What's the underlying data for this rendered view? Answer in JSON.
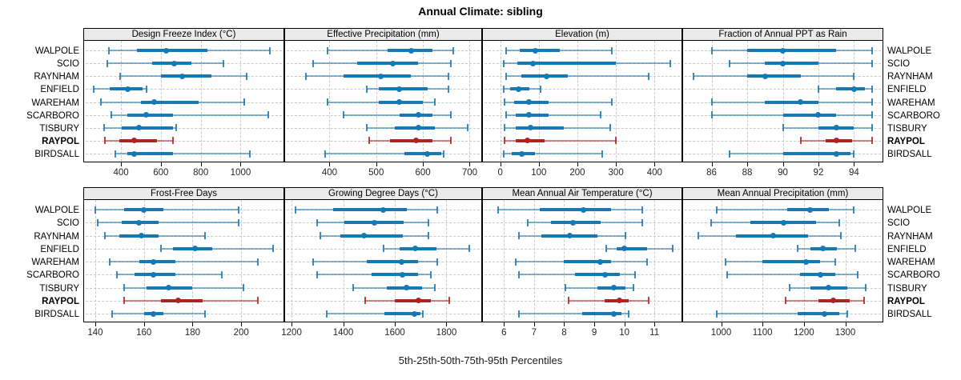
{
  "title": "Annual Climate: sibling",
  "caption": "5th-25th-50th-75th-95th Percentiles",
  "sites": [
    "WALPOLE",
    "SCIO",
    "RAYNHAM",
    "ENFIELD",
    "WAREHAM",
    "SCARBORO",
    "TISBURY",
    "RAYPOL",
    "BIRDSALL"
  ],
  "highlight_site": "RAYPOL",
  "colors": {
    "series": "#1878b4",
    "highlight": "#b22222",
    "grid": "#c9c9c9",
    "strip_bg": "#ebebeb",
    "panel_border": "#000000",
    "tick_text": "#262626"
  },
  "chart_data": {
    "type": "interval",
    "title": "Annual Climate: sibling",
    "caption": "5th-25th-50th-75th-95th Percentiles",
    "percentiles": [
      5,
      25,
      50,
      75,
      95
    ],
    "categories": [
      "WALPOLE",
      "SCIO",
      "RAYNHAM",
      "ENFIELD",
      "WAREHAM",
      "SCARBORO",
      "TISBURY",
      "RAYPOL",
      "BIRDSALL"
    ],
    "highlight": "RAYPOL",
    "grid": true,
    "legend_position": "none",
    "panels": [
      {
        "title": "Design Freeze Index (°C)",
        "row": 0,
        "col": 0,
        "xlim": [
          215,
          1215
        ],
        "ticks": [
          400,
          600,
          800,
          1000
        ],
        "series": [
          [
            340,
            480,
            625,
            835,
            1145
          ],
          [
            330,
            555,
            665,
            755,
            915
          ],
          [
            395,
            600,
            705,
            855,
            1030
          ],
          [
            265,
            345,
            435,
            510,
            530
          ],
          [
            300,
            500,
            565,
            790,
            1020
          ],
          [
            350,
            430,
            525,
            660,
            1140
          ],
          [
            315,
            405,
            490,
            660,
            675
          ],
          [
            320,
            390,
            465,
            580,
            660
          ],
          [
            370,
            430,
            465,
            660,
            1045
          ]
        ]
      },
      {
        "title": "Effective Precipitation (mm)",
        "row": 0,
        "col": 1,
        "xlim": [
          305,
          725
        ],
        "ticks": [
          400,
          500,
          600,
          700
        ],
        "series": [
          [
            395,
            525,
            575,
            620,
            665
          ],
          [
            365,
            460,
            535,
            590,
            660
          ],
          [
            350,
            430,
            510,
            575,
            655
          ],
          [
            480,
            505,
            550,
            610,
            655
          ],
          [
            395,
            505,
            550,
            600,
            625
          ],
          [
            430,
            550,
            590,
            620,
            660
          ],
          [
            480,
            540,
            590,
            625,
            695
          ],
          [
            485,
            530,
            585,
            620,
            660
          ],
          [
            390,
            560,
            610,
            640,
            645
          ]
        ]
      },
      {
        "title": "Elevation (m)",
        "row": 0,
        "col": 2,
        "xlim": [
          -45,
          470
        ],
        "ticks": [
          0,
          100,
          200,
          300,
          400
        ],
        "series": [
          [
            15,
            50,
            90,
            155,
            290
          ],
          [
            10,
            45,
            85,
            300,
            440
          ],
          [
            15,
            55,
            120,
            175,
            385
          ],
          [
            8,
            25,
            48,
            75,
            105
          ],
          [
            12,
            35,
            75,
            125,
            290
          ],
          [
            15,
            40,
            75,
            125,
            260
          ],
          [
            12,
            40,
            78,
            165,
            285
          ],
          [
            12,
            40,
            70,
            115,
            300
          ],
          [
            10,
            30,
            55,
            90,
            265
          ]
        ]
      },
      {
        "title": "Fraction of Annual PPT as Rain",
        "row": 0,
        "col": 3,
        "xlim": [
          84.4,
          95.6
        ],
        "ticks": [
          86,
          88,
          90,
          92,
          94
        ],
        "series": [
          [
            86,
            88,
            90,
            93,
            95
          ],
          [
            87,
            89,
            90,
            92,
            95
          ],
          [
            85,
            88,
            89,
            91,
            94
          ],
          [
            92,
            93,
            94,
            94.6,
            95
          ],
          [
            86,
            89,
            91,
            92,
            95
          ],
          [
            86,
            90,
            92,
            93,
            95
          ],
          [
            90,
            92,
            93,
            94,
            95
          ],
          [
            91,
            92.4,
            93,
            93.9,
            95
          ],
          [
            87,
            90,
            93,
            93.8,
            94
          ]
        ]
      },
      {
        "title": "Frost-Free Days",
        "row": 1,
        "col": 0,
        "xlim": [
          135.4,
          217.4
        ],
        "ticks": [
          140,
          160,
          180,
          200
        ],
        "series": [
          [
            140,
            152,
            160,
            168,
            199
          ],
          [
            141,
            151,
            158,
            166,
            199
          ],
          [
            144,
            150,
            159,
            166,
            185
          ],
          [
            167,
            172,
            181,
            188,
            213
          ],
          [
            146,
            158,
            164,
            173,
            207
          ],
          [
            149,
            156,
            164,
            173,
            192
          ],
          [
            152,
            161,
            170,
            180,
            201
          ],
          [
            152,
            167,
            174,
            184,
            207
          ],
          [
            147,
            160,
            164,
            168,
            185
          ]
        ]
      },
      {
        "title": "Growing Degree Days (°C)",
        "row": 1,
        "col": 1,
        "xlim": [
          1175,
          1935
        ],
        "ticks": [
          1200,
          1400,
          1600,
          1800
        ],
        "series": [
          [
            1215,
            1360,
            1555,
            1645,
            1765
          ],
          [
            1300,
            1405,
            1520,
            1635,
            1730
          ],
          [
            1310,
            1390,
            1480,
            1630,
            1730
          ],
          [
            1555,
            1620,
            1680,
            1760,
            1890
          ],
          [
            1285,
            1490,
            1625,
            1690,
            1765
          ],
          [
            1300,
            1510,
            1630,
            1690,
            1740
          ],
          [
            1440,
            1570,
            1645,
            1705,
            1755
          ],
          [
            1485,
            1600,
            1690,
            1740,
            1810
          ],
          [
            1335,
            1560,
            1675,
            1700,
            1710
          ]
        ]
      },
      {
        "title": "Mean Annual Air Temperature (°C)",
        "row": 1,
        "col": 2,
        "xlim": [
          5.3,
          11.9
        ],
        "ticks": [
          6,
          7,
          8,
          9,
          10,
          11
        ],
        "series": [
          [
            5.8,
            7.2,
            8.65,
            9.55,
            10.6
          ],
          [
            6.8,
            7.55,
            8.3,
            9.2,
            10.6
          ],
          [
            6.5,
            7.25,
            8.2,
            9.1,
            10.05
          ],
          [
            9.4,
            9.75,
            10.0,
            10.75,
            11.6
          ],
          [
            6.4,
            8.0,
            9.2,
            9.55,
            10.75
          ],
          [
            6.5,
            8.35,
            9.35,
            9.85,
            10.35
          ],
          [
            8.05,
            9.1,
            9.65,
            10.05,
            10.3
          ],
          [
            8.15,
            9.35,
            9.85,
            10.15,
            10.8
          ],
          [
            6.5,
            8.6,
            9.65,
            9.9,
            10.15
          ]
        ]
      },
      {
        "title": "Mean Annual Precipitation (mm)",
        "row": 1,
        "col": 3,
        "xlim": [
          908,
          1390
        ],
        "ticks": [
          1000,
          1100,
          1200,
          1300
        ],
        "series": [
          [
            990,
            1160,
            1215,
            1260,
            1320
          ],
          [
            975,
            1070,
            1150,
            1230,
            1285
          ],
          [
            945,
            1035,
            1125,
            1210,
            1290
          ],
          [
            1185,
            1215,
            1245,
            1280,
            1325
          ],
          [
            1010,
            1100,
            1205,
            1240,
            1275
          ],
          [
            1015,
            1190,
            1240,
            1275,
            1330
          ],
          [
            1165,
            1215,
            1260,
            1305,
            1350
          ],
          [
            1155,
            1235,
            1270,
            1310,
            1345
          ],
          [
            990,
            1185,
            1250,
            1285,
            1305
          ]
        ]
      }
    ]
  }
}
